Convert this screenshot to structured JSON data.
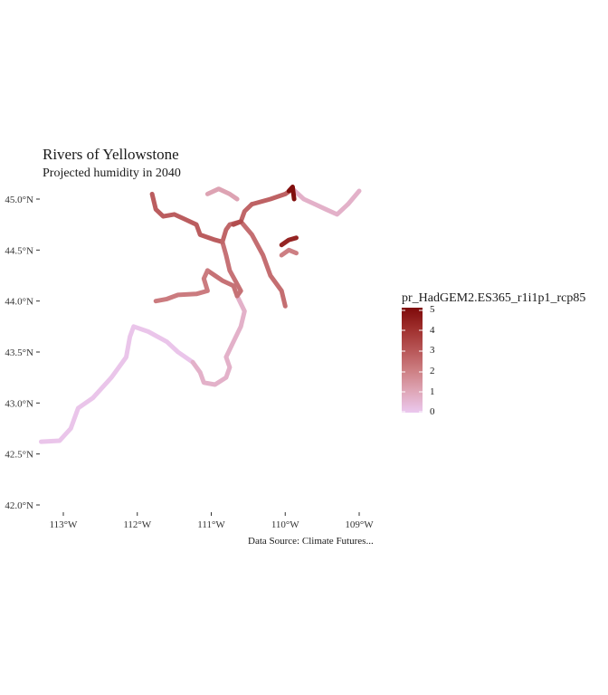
{
  "title": "Rivers of Yellowstone",
  "subtitle": "Projected humidity in 2040",
  "caption": "Data Source: Climate Futures...",
  "legend": {
    "title": "pr_HadGEM2.ES365_r1i1p1_rcp85",
    "ticks": [
      "0",
      "1",
      "2",
      "3",
      "4",
      "5"
    ],
    "min": 0,
    "max": 5,
    "colors": [
      "#ebc8ef",
      "#dfa7b8",
      "#cd7f83",
      "#b75556",
      "#9f2f2d",
      "#7e0a0a"
    ]
  },
  "axes": {
    "lat_labels": [
      "42.0°N",
      "42.5°N",
      "43.0°N",
      "43.5°N",
      "44.0°N",
      "44.5°N",
      "45.0°N"
    ],
    "lat_values": [
      42.0,
      42.5,
      43.0,
      43.5,
      44.0,
      44.5,
      45.0
    ],
    "lon_labels": [
      "113°W",
      "112°W",
      "111°W",
      "110°W",
      "109°W"
    ],
    "lon_values": [
      -113,
      -112,
      -111,
      -110,
      -109
    ]
  },
  "map_data": {
    "rivers": [
      {
        "value": 0.1,
        "coords": [
          [
            -113.3,
            42.62
          ],
          [
            -113.05,
            42.63
          ],
          [
            -112.9,
            42.75
          ],
          [
            -112.8,
            42.95
          ],
          [
            -112.6,
            43.05
          ],
          [
            -112.35,
            43.25
          ],
          [
            -112.15,
            43.45
          ],
          [
            -112.1,
            43.65
          ],
          [
            -112.05,
            43.75
          ],
          [
            -111.85,
            43.7
          ],
          [
            -111.6,
            43.6
          ],
          [
            -111.45,
            43.5
          ],
          [
            -111.25,
            43.4
          ]
        ]
      },
      {
        "value": 0.7,
        "coords": [
          [
            -111.25,
            43.4
          ],
          [
            -111.15,
            43.3
          ],
          [
            -111.1,
            43.2
          ],
          [
            -110.95,
            43.18
          ],
          [
            -110.8,
            43.25
          ],
          [
            -110.75,
            43.35
          ],
          [
            -110.8,
            43.45
          ],
          [
            -110.7,
            43.6
          ],
          [
            -110.6,
            43.75
          ],
          [
            -110.55,
            43.9
          ],
          [
            -110.65,
            44.05
          ]
        ]
      },
      {
        "value": 2.3,
        "coords": [
          [
            -110.65,
            44.05
          ],
          [
            -110.7,
            44.15
          ],
          [
            -110.85,
            44.2
          ],
          [
            -110.95,
            44.25
          ],
          [
            -111.05,
            44.3
          ]
        ]
      },
      {
        "value": 2.1,
        "coords": [
          [
            -111.05,
            44.3
          ],
          [
            -111.1,
            44.22
          ],
          [
            -111.05,
            44.1
          ],
          [
            -111.2,
            44.07
          ],
          [
            -111.45,
            44.06
          ],
          [
            -111.6,
            44.02
          ],
          [
            -111.75,
            44.0
          ]
        ]
      },
      {
        "value": 2.3,
        "coords": [
          [
            -110.65,
            44.05
          ],
          [
            -110.6,
            44.1
          ],
          [
            -110.75,
            44.3
          ],
          [
            -110.8,
            44.45
          ],
          [
            -110.85,
            44.58
          ]
        ]
      },
      {
        "value": 2.8,
        "coords": [
          [
            -110.85,
            44.58
          ],
          [
            -110.95,
            44.6
          ],
          [
            -111.15,
            44.65
          ],
          [
            -111.2,
            44.75
          ],
          [
            -111.35,
            44.8
          ],
          [
            -111.5,
            44.85
          ],
          [
            -111.65,
            44.83
          ],
          [
            -111.75,
            44.9
          ],
          [
            -111.8,
            45.05
          ]
        ]
      },
      {
        "value": 2.6,
        "coords": [
          [
            -110.85,
            44.58
          ],
          [
            -110.8,
            44.7
          ],
          [
            -110.75,
            44.75
          ],
          [
            -110.6,
            44.78
          ],
          [
            -110.55,
            44.88
          ],
          [
            -110.45,
            44.95
          ]
        ]
      },
      {
        "value": 2.4,
        "coords": [
          [
            -110.6,
            44.78
          ],
          [
            -110.45,
            44.65
          ],
          [
            -110.3,
            44.45
          ],
          [
            -110.2,
            44.25
          ],
          [
            -110.05,
            44.1
          ],
          [
            -110.0,
            43.95
          ]
        ]
      },
      {
        "value": 2.7,
        "coords": [
          [
            -110.45,
            44.95
          ],
          [
            -110.2,
            45.0
          ],
          [
            -110.0,
            45.05
          ],
          [
            -109.9,
            45.1
          ]
        ]
      },
      {
        "value": 3.2,
        "coords": [
          [
            -110.6,
            44.78
          ],
          [
            -110.7,
            44.75
          ]
        ]
      },
      {
        "value": 1.1,
        "coords": [
          [
            -111.05,
            45.05
          ],
          [
            -110.9,
            45.1
          ],
          [
            -110.75,
            45.05
          ],
          [
            -110.65,
            45.0
          ]
        ]
      },
      {
        "value": 0.7,
        "coords": [
          [
            -109.9,
            45.1
          ],
          [
            -109.75,
            45.0
          ],
          [
            -109.6,
            44.95
          ],
          [
            -109.45,
            44.9
          ],
          [
            -109.3,
            44.85
          ],
          [
            -109.15,
            44.95
          ],
          [
            -109.0,
            45.08
          ]
        ]
      },
      {
        "value": 4.3,
        "coords": [
          [
            -110.05,
            44.55
          ],
          [
            -109.95,
            44.6
          ],
          [
            -109.85,
            44.62
          ]
        ]
      },
      {
        "value": 2.0,
        "coords": [
          [
            -110.05,
            44.45
          ],
          [
            -109.95,
            44.5
          ],
          [
            -109.85,
            44.47
          ]
        ]
      },
      {
        "value": 4.9,
        "coords": [
          [
            -109.95,
            45.08
          ],
          [
            -109.9,
            45.12
          ],
          [
            -109.88,
            45.0
          ]
        ]
      }
    ]
  }
}
